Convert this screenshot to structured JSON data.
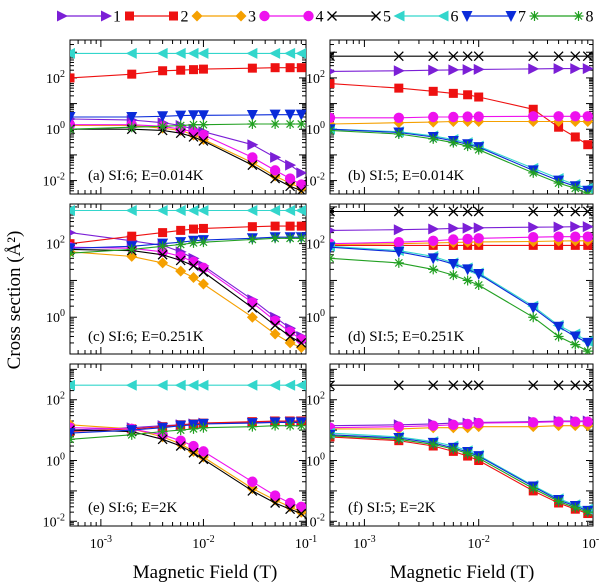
{
  "figure": {
    "ylabel": "Cross section (Å²)",
    "xlabel": "Magnetic Field (T)"
  },
  "series": [
    {
      "name": "1",
      "color": "#7b1fd6",
      "marker": "triangle-right"
    },
    {
      "name": "2",
      "color": "#ee1111",
      "marker": "square"
    },
    {
      "name": "3",
      "color": "#f5a000",
      "marker": "diamond"
    },
    {
      "name": "4",
      "color": "#ee11ee",
      "marker": "circle"
    },
    {
      "name": "5",
      "color": "#000000",
      "marker": "x"
    },
    {
      "name": "6",
      "color": "#33d6cc",
      "marker": "triangle-left"
    },
    {
      "name": "7",
      "color": "#0a2bd9",
      "marker": "triangle-down"
    },
    {
      "name": "8",
      "color": "#22a022",
      "marker": "star"
    }
  ],
  "chart_data": [
    {
      "type": "scatter",
      "label": "(a) SI:6; E=0.014K",
      "xscale": "log",
      "yscale": "log",
      "xlim": [
        0.0005,
        0.1
      ],
      "ylim": [
        0.003,
        3000
      ],
      "yticks": [
        0.01,
        1,
        100
      ],
      "ytick_labels": [
        "10^-2",
        "10^0",
        "10^2"
      ],
      "x": [
        0.0005,
        0.002,
        0.004,
        0.006,
        0.008,
        0.01,
        0.03,
        0.05,
        0.07,
        0.09
      ],
      "series": [
        {
          "name": "1",
          "values": [
            2.5,
            2.3,
            1.8,
            1.4,
            1.0,
            0.8,
            0.25,
            0.08,
            0.04,
            0.02
          ]
        },
        {
          "name": "2",
          "values": [
            100,
            140,
            190,
            200,
            210,
            220,
            240,
            250,
            250,
            250
          ]
        },
        {
          "name": "3",
          "values": [
            1.4,
            1.4,
            1.1,
            0.9,
            0.6,
            0.4,
            0.05,
            0.015,
            0.008,
            0.005
          ]
        },
        {
          "name": "4",
          "values": [
            1.5,
            1.5,
            1.3,
            1.0,
            0.8,
            0.6,
            0.08,
            0.025,
            0.012,
            0.007
          ]
        },
        {
          "name": "5",
          "values": [
            1.0,
            1.0,
            0.9,
            0.7,
            0.5,
            0.35,
            0.04,
            0.012,
            0.006,
            0.004
          ]
        },
        {
          "name": "6",
          "values": [
            900,
            900,
            900,
            900,
            900,
            900,
            900,
            900,
            900,
            900
          ]
        },
        {
          "name": "7",
          "values": [
            3.0,
            3.0,
            3.2,
            3.4,
            3.5,
            3.5,
            3.6,
            3.7,
            3.7,
            3.7
          ]
        },
        {
          "name": "8",
          "values": [
            1.0,
            1.2,
            1.3,
            1.4,
            1.5,
            1.5,
            1.6,
            1.6,
            1.6,
            1.6
          ]
        }
      ]
    },
    {
      "type": "scatter",
      "label": "(b) SI:5; E=0.014K",
      "xscale": "log",
      "yscale": "log",
      "xlim": [
        0.0005,
        0.1
      ],
      "ylim": [
        0.003,
        3000
      ],
      "yticks": [
        0.01,
        1,
        100
      ],
      "ytick_labels": [
        "10^-2",
        "10^0",
        "10^2"
      ],
      "x": [
        0.0005,
        0.002,
        0.004,
        0.006,
        0.008,
        0.01,
        0.03,
        0.05,
        0.07,
        0.09
      ],
      "series": [
        {
          "name": "1",
          "values": [
            180,
            190,
            200,
            205,
            210,
            215,
            225,
            230,
            230,
            230
          ]
        },
        {
          "name": "2",
          "values": [
            60,
            40,
            30,
            25,
            22,
            18,
            6,
            1.2,
            0.5,
            0.25
          ]
        },
        {
          "name": "3",
          "values": [
            1.6,
            1.8,
            1.9,
            2.0,
            2.0,
            2.0,
            2.0,
            2.0,
            2.0,
            2.0
          ]
        },
        {
          "name": "4",
          "values": [
            2.8,
            2.8,
            3.0,
            3.0,
            3.1,
            3.1,
            3.2,
            3.2,
            3.2,
            3.2
          ]
        },
        {
          "name": "5",
          "values": [
            700,
            700,
            700,
            700,
            700,
            700,
            700,
            700,
            700,
            700
          ]
        },
        {
          "name": "6",
          "values": [
            1.0,
            0.8,
            0.55,
            0.4,
            0.3,
            0.22,
            0.03,
            0.012,
            0.007,
            0.005
          ]
        },
        {
          "name": "7",
          "values": [
            1.0,
            0.75,
            0.5,
            0.35,
            0.26,
            0.2,
            0.025,
            0.01,
            0.006,
            0.004
          ]
        },
        {
          "name": "8",
          "values": [
            0.9,
            0.65,
            0.42,
            0.3,
            0.22,
            0.16,
            0.02,
            0.008,
            0.005,
            0.003
          ]
        }
      ]
    },
    {
      "type": "scatter",
      "label": "(c) SI:6; E=0.251K",
      "xscale": "log",
      "yscale": "log",
      "xlim": [
        0.0005,
        0.1
      ],
      "ylim": [
        0.1,
        1200
      ],
      "yticks": [
        1,
        100
      ],
      "ytick_labels": [
        "10^0",
        "10^2"
      ],
      "x": [
        0.0005,
        0.002,
        0.004,
        0.006,
        0.008,
        0.01,
        0.03,
        0.05,
        0.07,
        0.09
      ],
      "series": [
        {
          "name": "1",
          "values": [
            200,
            120,
            90,
            60,
            40,
            25,
            3.0,
            1.0,
            0.5,
            0.3
          ]
        },
        {
          "name": "2",
          "values": [
            100,
            160,
            200,
            230,
            250,
            260,
            290,
            300,
            300,
            300
          ]
        },
        {
          "name": "3",
          "values": [
            60,
            45,
            30,
            18,
            12,
            8,
            1.0,
            0.35,
            0.2,
            0.15
          ]
        },
        {
          "name": "4",
          "values": [
            80,
            75,
            60,
            45,
            32,
            22,
            2.5,
            0.8,
            0.4,
            0.25
          ]
        },
        {
          "name": "5",
          "values": [
            70,
            65,
            50,
            35,
            25,
            17,
            1.8,
            0.6,
            0.3,
            0.2
          ]
        },
        {
          "name": "6",
          "values": [
            800,
            800,
            800,
            800,
            800,
            800,
            800,
            800,
            800,
            800
          ]
        },
        {
          "name": "7",
          "values": [
            75,
            85,
            100,
            110,
            120,
            125,
            140,
            150,
            150,
            150
          ]
        },
        {
          "name": "8",
          "values": [
            55,
            70,
            85,
            95,
            105,
            110,
            130,
            140,
            140,
            140
          ]
        }
      ]
    },
    {
      "type": "scatter",
      "label": "(d) SI:5; E=0.251K",
      "xscale": "log",
      "yscale": "log",
      "xlim": [
        0.0005,
        0.1
      ],
      "ylim": [
        0.1,
        1200
      ],
      "yticks": [
        1,
        100
      ],
      "ytick_labels": [
        "10^0",
        "10^2"
      ],
      "x": [
        0.0005,
        0.002,
        0.004,
        0.006,
        0.008,
        0.01,
        0.03,
        0.05,
        0.07,
        0.09
      ],
      "series": [
        {
          "name": "1",
          "values": [
            230,
            240,
            250,
            260,
            265,
            270,
            280,
            285,
            290,
            290
          ]
        },
        {
          "name": "2",
          "values": [
            90,
            90,
            90,
            90,
            90,
            90,
            90,
            90,
            90,
            90
          ]
        },
        {
          "name": "3",
          "values": [
            95,
            100,
            105,
            108,
            110,
            112,
            115,
            118,
            120,
            120
          ]
        },
        {
          "name": "4",
          "values": [
            100,
            110,
            120,
            130,
            135,
            140,
            150,
            155,
            155,
            155
          ]
        },
        {
          "name": "5",
          "values": [
            750,
            750,
            750,
            750,
            750,
            750,
            750,
            750,
            750,
            750
          ]
        },
        {
          "name": "6",
          "values": [
            85,
            65,
            45,
            30,
            22,
            16,
            2.0,
            0.6,
            0.35,
            0.22
          ]
        },
        {
          "name": "7",
          "values": [
            80,
            60,
            40,
            28,
            20,
            15,
            1.8,
            0.55,
            0.3,
            0.2
          ]
        },
        {
          "name": "8",
          "values": [
            40,
            30,
            20,
            14,
            10,
            7.5,
            1.0,
            0.3,
            0.18,
            0.12
          ]
        }
      ]
    },
    {
      "type": "scatter",
      "label": "(e) SI:6; E=2K",
      "xscale": "log",
      "yscale": "log",
      "xlim": [
        0.0005,
        0.1
      ],
      "ylim": [
        0.007,
        1500
      ],
      "yticks": [
        0.01,
        1,
        100
      ],
      "ytick_labels": [
        "10^-2",
        "10^0",
        "10^2"
      ],
      "x": [
        0.0005,
        0.002,
        0.004,
        0.006,
        0.008,
        0.01,
        0.03,
        0.05,
        0.07,
        0.09
      ],
      "series": [
        {
          "name": "1",
          "values": [
            10,
            12,
            14,
            15,
            16,
            17,
            18,
            19,
            19,
            19
          ]
        },
        {
          "name": "2",
          "values": [
            9,
            11,
            13,
            15,
            16,
            17,
            19,
            20,
            20,
            20
          ]
        },
        {
          "name": "3",
          "values": [
            15,
            11,
            6,
            3.5,
            2.0,
            1.3,
            0.12,
            0.05,
            0.03,
            0.02
          ]
        },
        {
          "name": "4",
          "values": [
            12,
            11,
            7,
            4.5,
            3.0,
            2.0,
            0.2,
            0.07,
            0.04,
            0.03
          ]
        },
        {
          "name": "5",
          "values": [
            10,
            9,
            5,
            3.0,
            1.8,
            1.1,
            0.1,
            0.04,
            0.025,
            0.018
          ]
        },
        {
          "name": "6",
          "values": [
            300,
            300,
            300,
            300,
            300,
            300,
            300,
            300,
            300,
            300
          ]
        },
        {
          "name": "7",
          "values": [
            8,
            10,
            12,
            14,
            15,
            16,
            17,
            18,
            18,
            18
          ]
        },
        {
          "name": "8",
          "values": [
            5,
            7,
            9,
            10,
            11,
            12,
            13,
            14,
            14,
            14
          ]
        }
      ]
    },
    {
      "type": "scatter",
      "label": "(f) SI:5; E=2K",
      "xscale": "log",
      "yscale": "log",
      "xlim": [
        0.0005,
        0.1
      ],
      "ylim": [
        0.007,
        1500
      ],
      "yticks": [
        0.01,
        1,
        100
      ],
      "ytick_labels": [
        "10^-2",
        "10^0",
        "10^2"
      ],
      "x": [
        0.0005,
        0.002,
        0.004,
        0.006,
        0.008,
        0.01,
        0.03,
        0.05,
        0.07,
        0.09
      ],
      "series": [
        {
          "name": "1",
          "values": [
            14,
            15,
            16,
            17,
            17,
            18,
            19,
            20,
            20,
            20
          ]
        },
        {
          "name": "2",
          "values": [
            6,
            4.5,
            3.0,
            2.0,
            1.4,
            1.0,
            0.1,
            0.04,
            0.025,
            0.018
          ]
        },
        {
          "name": "3",
          "values": [
            11,
            11,
            12,
            12,
            12,
            13,
            13,
            14,
            14,
            14
          ]
        },
        {
          "name": "4",
          "values": [
            12,
            13,
            14,
            15,
            16,
            17,
            18,
            19,
            19,
            19
          ]
        },
        {
          "name": "5",
          "values": [
            300,
            300,
            300,
            300,
            300,
            300,
            300,
            300,
            300,
            300
          ]
        },
        {
          "name": "6",
          "values": [
            8,
            6,
            4.2,
            3.0,
            2.1,
            1.5,
            0.15,
            0.055,
            0.035,
            0.025
          ]
        },
        {
          "name": "7",
          "values": [
            7,
            5.5,
            3.8,
            2.6,
            1.9,
            1.4,
            0.14,
            0.05,
            0.032,
            0.022
          ]
        },
        {
          "name": "8",
          "values": [
            6.5,
            5,
            3.4,
            2.4,
            1.7,
            1.2,
            0.12,
            0.045,
            0.028,
            0.02
          ]
        }
      ]
    }
  ],
  "xticks": [
    0.001,
    0.01,
    0.1
  ],
  "xtick_labels": [
    "10^-3",
    "10^-2",
    "10^-1"
  ]
}
